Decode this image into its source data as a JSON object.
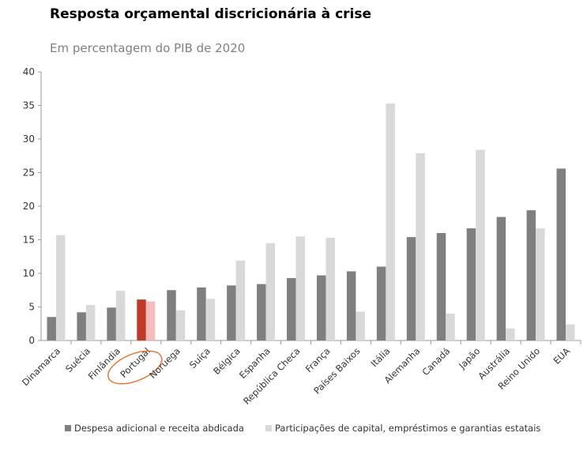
{
  "title": "Resposta orçamental discricionária à crise",
  "subtitle": "Em percentagem do PIB de 2020",
  "chart_data": {
    "type": "bar",
    "title": "Resposta orçamental discricionária à crise",
    "subtitle": "Em percentagem do PIB de 2020",
    "xlabel": "",
    "ylabel": "",
    "ylim": [
      0,
      40
    ],
    "yticks": [
      0,
      5,
      10,
      15,
      20,
      25,
      30,
      35,
      40
    ],
    "grid": false,
    "legend": "bottom",
    "highlight": "Portugal",
    "highlight_colors": [
      "#c0392b",
      "#f4bcbc"
    ],
    "highlight_marker_color": "#e07b39",
    "categories": [
      "Dinamarca",
      "Suécia",
      "Finlândia",
      "Portugal",
      "Noruega",
      "Suíça",
      "Bélgica",
      "Espanha",
      "República Checa",
      "França",
      "Países Baixos",
      "Itália",
      "Alemanha",
      "Canadá",
      "Japão",
      "Austrália",
      "Reino Unido",
      "EUA"
    ],
    "series": [
      {
        "name": "Despesa adicional e receita abdicada",
        "color": "#7f7f7f",
        "values": [
          3.5,
          4.2,
          4.9,
          6.1,
          7.5,
          7.9,
          8.2,
          8.4,
          9.3,
          9.7,
          10.3,
          11.0,
          15.4,
          16.0,
          16.7,
          18.4,
          19.4,
          25.6
        ]
      },
      {
        "name": "Participações de capital, empréstimos e garantias estatais",
        "color": "#d9d9d9",
        "values": [
          15.7,
          5.3,
          7.4,
          5.8,
          4.5,
          6.2,
          11.9,
          14.5,
          15.5,
          15.3,
          4.3,
          35.3,
          27.9,
          4.0,
          28.4,
          1.8,
          16.7,
          2.4
        ]
      }
    ]
  }
}
